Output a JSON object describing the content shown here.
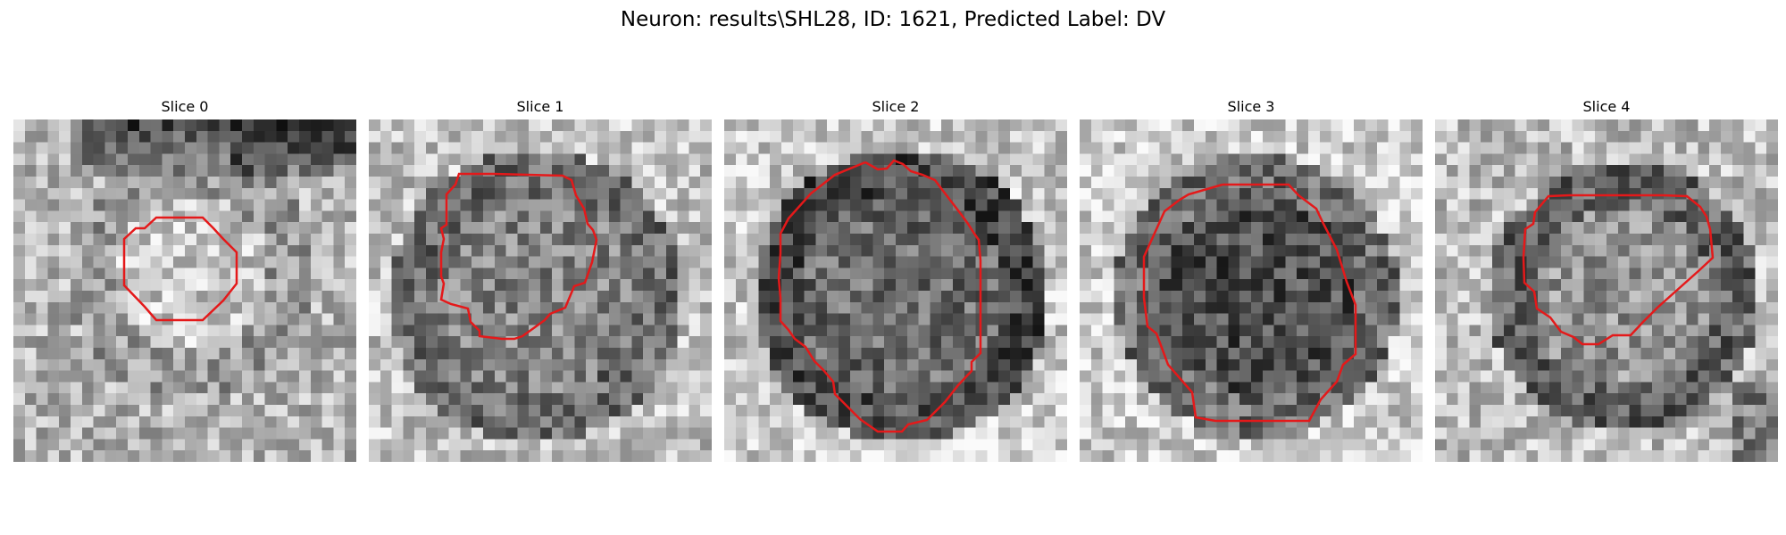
{
  "figure": {
    "title": "Neuron: results\\SHL28, ID: 1621, Predicted Label: DV",
    "contour_color": "#e4191a",
    "colormap": "grayscale"
  },
  "panels": [
    {
      "title": "Slice 0"
    },
    {
      "title": "Slice 1"
    },
    {
      "title": "Slice 2"
    },
    {
      "title": "Slice 3"
    },
    {
      "title": "Slice 4"
    }
  ]
}
